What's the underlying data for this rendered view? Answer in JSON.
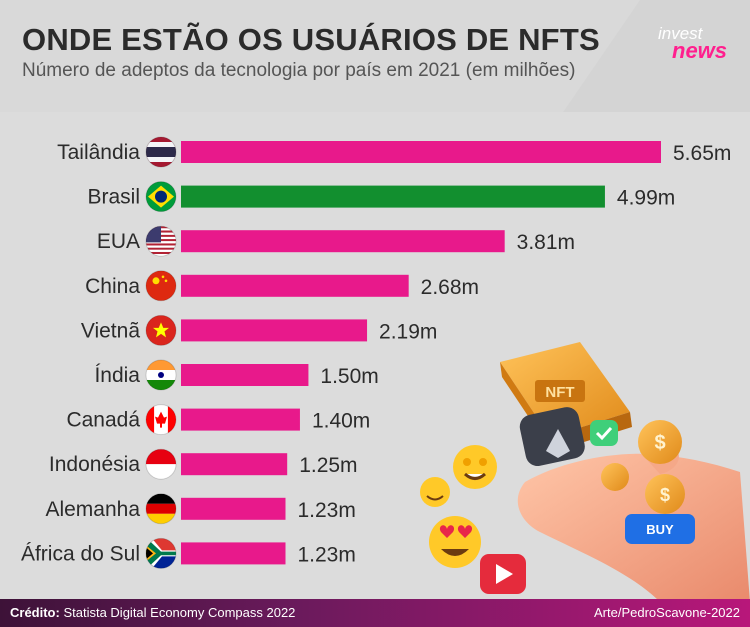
{
  "header": {
    "title": "ONDE ESTÃO OS USUÁRIOS DE NFTS",
    "subtitle": "Número de adeptos da tecnologia por país em 2021 (em milhões)",
    "logo_top": "invest",
    "logo_bottom": "news"
  },
  "illustration": {
    "nft_label": "NFT",
    "buy_label": "BUY"
  },
  "footer": {
    "credit_label": "Crédito:",
    "credit_text": " Statista Digital Economy Compass 2022",
    "art": "Arte/PedroScavone-2022"
  },
  "colors": {
    "bar": "#e8198b",
    "highlight": "#128f2f",
    "text": "#2b2b2b"
  },
  "chart_data": {
    "type": "bar",
    "orientation": "horizontal",
    "title": "ONDE ESTÃO OS USUÁRIOS DE NFTS",
    "subtitle": "Número de adeptos da tecnologia por país em 2021 (em milhões)",
    "categories": [
      "Tailândia",
      "Brasil",
      "EUA",
      "China",
      "Vietnã",
      "Índia",
      "Canadá",
      "Indonésia",
      "Alemanha",
      "África do Sul"
    ],
    "values": [
      5.65,
      4.99,
      3.81,
      2.68,
      2.19,
      1.5,
      1.4,
      1.25,
      1.23,
      1.23
    ],
    "value_labels": [
      "5.65m",
      "4.99m",
      "3.81m",
      "2.68m",
      "2.19m",
      "1.50m",
      "1.40m",
      "1.25m",
      "1.23m",
      "1.23m"
    ],
    "flags": [
      "thailand",
      "brazil",
      "usa",
      "china",
      "vietnam",
      "india",
      "canada",
      "indonesia",
      "germany",
      "south-africa"
    ],
    "highlight_category": "Brasil",
    "xlim": [
      0,
      5.65
    ],
    "grid": false,
    "legend": "none"
  }
}
